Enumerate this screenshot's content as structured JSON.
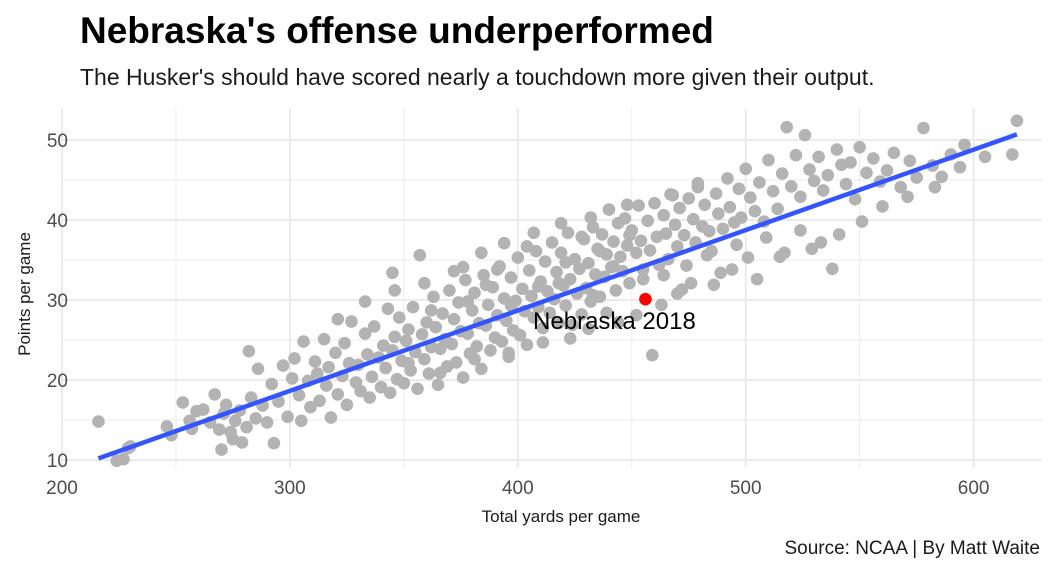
{
  "title": "Nebraska's offense underperformed",
  "subtitle": "The Husker's should have scored nearly a touchdown more given their output.",
  "caption": "Source: NCAA | By Matt Waite",
  "colors": {
    "points": "#b3b3b3",
    "highlight": "#ff0000",
    "trend": "#3355ff",
    "grid": "#ebebeb"
  },
  "chart_data": {
    "type": "scatter",
    "xlabel": "Total yards per game",
    "ylabel": "Points per game",
    "xlim": [
      200,
      630
    ],
    "ylim": [
      9,
      54
    ],
    "xticks": [
      200,
      300,
      400,
      500,
      600
    ],
    "yticks": [
      10,
      20,
      30,
      40,
      50
    ],
    "grid": true,
    "trend_line": {
      "x": [
        216,
        619
      ],
      "y": [
        10.2,
        50.7
      ]
    },
    "highlight": {
      "label": "Nebraska 2018",
      "x": 456,
      "y": 30.1
    },
    "points": [
      [
        216,
        14.8
      ],
      [
        224,
        9.9
      ],
      [
        227,
        10.1
      ],
      [
        229,
        11.5
      ],
      [
        230,
        11.7
      ],
      [
        246,
        14.2
      ],
      [
        248,
        13.1
      ],
      [
        253,
        17.2
      ],
      [
        256,
        14.9
      ],
      [
        257,
        13.9
      ],
      [
        259,
        16.1
      ],
      [
        262,
        16.3
      ],
      [
        265,
        14.7
      ],
      [
        267,
        18.2
      ],
      [
        269,
        13.8
      ],
      [
        270,
        11.3
      ],
      [
        271,
        15.8
      ],
      [
        272,
        16.9
      ],
      [
        274,
        13.5
      ],
      [
        275,
        12.6
      ],
      [
        276,
        14.9
      ],
      [
        278,
        16.2
      ],
      [
        279,
        12.2
      ],
      [
        281,
        14.1
      ],
      [
        282,
        23.6
      ],
      [
        283,
        17.8
      ],
      [
        285,
        15.2
      ],
      [
        286,
        21.4
      ],
      [
        288,
        16.8
      ],
      [
        290,
        14.7
      ],
      [
        292,
        19.5
      ],
      [
        293,
        12.1
      ],
      [
        295,
        17.3
      ],
      [
        297,
        21.8
      ],
      [
        299,
        15.4
      ],
      [
        301,
        20.2
      ],
      [
        302,
        22.7
      ],
      [
        304,
        18.1
      ],
      [
        305,
        14.9
      ],
      [
        306,
        24.8
      ],
      [
        308,
        19.9
      ],
      [
        309,
        16.6
      ],
      [
        311,
        22.3
      ],
      [
        312,
        20.8
      ],
      [
        313,
        17.4
      ],
      [
        315,
        25.1
      ],
      [
        316,
        19.3
      ],
      [
        317,
        21.6
      ],
      [
        318,
        15.3
      ],
      [
        320,
        23.4
      ],
      [
        321,
        18.2
      ],
      [
        323,
        20.5
      ],
      [
        324,
        24.6
      ],
      [
        325,
        16.9
      ],
      [
        326,
        22.1
      ],
      [
        327,
        27.3
      ],
      [
        329,
        19.7
      ],
      [
        330,
        21.9
      ],
      [
        331,
        18.6
      ],
      [
        333,
        25.8
      ],
      [
        334,
        23.2
      ],
      [
        335,
        17.8
      ],
      [
        336,
        20.4
      ],
      [
        337,
        26.7
      ],
      [
        339,
        22.8
      ],
      [
        340,
        19.1
      ],
      [
        341,
        24.3
      ],
      [
        342,
        21.5
      ],
      [
        343,
        28.9
      ],
      [
        344,
        18.4
      ],
      [
        345,
        23.7
      ],
      [
        346,
        25.4
      ],
      [
        347,
        20.1
      ],
      [
        348,
        27.8
      ],
      [
        349,
        22.4
      ],
      [
        350,
        19.6
      ],
      [
        351,
        24.9
      ],
      [
        352,
        26.3
      ],
      [
        353,
        21.2
      ],
      [
        354,
        29.1
      ],
      [
        355,
        23.5
      ],
      [
        356,
        18.9
      ],
      [
        357,
        35.6
      ],
      [
        358,
        25.7
      ],
      [
        359,
        22.6
      ],
      [
        360,
        27.2
      ],
      [
        361,
        20.8
      ],
      [
        362,
        24.1
      ],
      [
        363,
        30.4
      ],
      [
        364,
        26.6
      ],
      [
        365,
        19.4
      ],
      [
        366,
        23.9
      ],
      [
        367,
        28.3
      ],
      [
        368,
        25.1
      ],
      [
        369,
        21.7
      ],
      [
        370,
        31.2
      ],
      [
        371,
        24.5
      ],
      [
        372,
        27.6
      ],
      [
        373,
        22.2
      ],
      [
        374,
        29.7
      ],
      [
        375,
        26.1
      ],
      [
        376,
        20.3
      ],
      [
        377,
        32.5
      ],
      [
        378,
        25.8
      ],
      [
        379,
        23.3
      ],
      [
        380,
        28.7
      ],
      [
        381,
        30.9
      ],
      [
        382,
        24.2
      ],
      [
        383,
        27.1
      ],
      [
        384,
        21.4
      ],
      [
        385,
        33.1
      ],
      [
        386,
        26.8
      ],
      [
        387,
        29.4
      ],
      [
        388,
        23.7
      ],
      [
        389,
        31.6
      ],
      [
        390,
        25.3
      ],
      [
        391,
        28.1
      ],
      [
        392,
        34.2
      ],
      [
        393,
        24.8
      ],
      [
        394,
        30.2
      ],
      [
        395,
        27.4
      ],
      [
        396,
        22.9
      ],
      [
        397,
        32.8
      ],
      [
        398,
        26.2
      ],
      [
        399,
        29.9
      ],
      [
        400,
        35.3
      ],
      [
        401,
        25.6
      ],
      [
        402,
        31.4
      ],
      [
        403,
        28.6
      ],
      [
        404,
        24.4
      ],
      [
        405,
        33.7
      ],
      [
        406,
        30.5
      ],
      [
        407,
        27.8
      ],
      [
        408,
        36.1
      ],
      [
        409,
        29.1
      ],
      [
        410,
        32.3
      ],
      [
        411,
        26.5
      ],
      [
        412,
        34.8
      ],
      [
        413,
        31.1
      ],
      [
        414,
        28.4
      ],
      [
        415,
        37.2
      ],
      [
        416,
        30.1
      ],
      [
        417,
        33.5
      ],
      [
        418,
        27.1
      ],
      [
        419,
        35.9
      ],
      [
        420,
        31.8
      ],
      [
        421,
        29.3
      ],
      [
        422,
        38.4
      ],
      [
        423,
        32.6
      ],
      [
        424,
        26.9
      ],
      [
        425,
        35.1
      ],
      [
        426,
        30.8
      ],
      [
        427,
        33.9
      ],
      [
        428,
        28.2
      ],
      [
        429,
        37.6
      ],
      [
        430,
        31.5
      ],
      [
        431,
        34.6
      ],
      [
        432,
        29.8
      ],
      [
        433,
        39.1
      ],
      [
        434,
        33.2
      ],
      [
        435,
        36.4
      ],
      [
        436,
        30.4
      ],
      [
        437,
        38.2
      ],
      [
        438,
        32.9
      ],
      [
        439,
        35.7
      ],
      [
        440,
        41.3
      ],
      [
        441,
        34.1
      ],
      [
        442,
        37.3
      ],
      [
        443,
        31.2
      ],
      [
        444,
        39.6
      ],
      [
        445,
        35.4
      ],
      [
        446,
        33.6
      ],
      [
        447,
        40.2
      ],
      [
        448,
        36.8
      ],
      [
        449,
        32.1
      ],
      [
        450,
        38.7
      ],
      [
        452,
        35.9
      ],
      [
        453,
        41.8
      ],
      [
        454,
        37.4
      ],
      [
        455,
        33.8
      ],
      [
        457,
        39.9
      ],
      [
        458,
        36.2
      ],
      [
        459,
        23.1
      ],
      [
        460,
        42.1
      ],
      [
        461,
        37.9
      ],
      [
        462,
        34.4
      ],
      [
        464,
        40.6
      ],
      [
        465,
        38.3
      ],
      [
        466,
        35.1
      ],
      [
        467,
        43.2
      ],
      [
        469,
        39.4
      ],
      [
        470,
        36.7
      ],
      [
        471,
        41.5
      ],
      [
        473,
        38.1
      ],
      [
        474,
        34.3
      ],
      [
        475,
        42.7
      ],
      [
        477,
        40.1
      ],
      [
        478,
        37.2
      ],
      [
        479,
        44.1
      ],
      [
        481,
        39.2
      ],
      [
        482,
        41.9
      ],
      [
        484,
        38.6
      ],
      [
        485,
        36.1
      ],
      [
        487,
        43.3
      ],
      [
        488,
        40.8
      ],
      [
        490,
        38.9
      ],
      [
        492,
        45.2
      ],
      [
        493,
        41.6
      ],
      [
        495,
        39.7
      ],
      [
        497,
        43.9
      ],
      [
        498,
        40.3
      ],
      [
        500,
        46.4
      ],
      [
        502,
        42.8
      ],
      [
        504,
        41.1
      ],
      [
        506,
        44.7
      ],
      [
        508,
        39.8
      ],
      [
        510,
        47.5
      ],
      [
        512,
        43.6
      ],
      [
        514,
        41.4
      ],
      [
        516,
        45.8
      ],
      [
        518,
        51.6
      ],
      [
        520,
        44.2
      ],
      [
        522,
        48.1
      ],
      [
        524,
        42.9
      ],
      [
        526,
        50.6
      ],
      [
        528,
        46.3
      ],
      [
        530,
        44.9
      ],
      [
        532,
        47.9
      ],
      [
        534,
        43.7
      ],
      [
        536,
        45.6
      ],
      [
        538,
        33.9
      ],
      [
        540,
        48.8
      ],
      [
        542,
        46.9
      ],
      [
        544,
        44.5
      ],
      [
        546,
        47.2
      ],
      [
        548,
        42.6
      ],
      [
        550,
        49.1
      ],
      [
        553,
        45.9
      ],
      [
        556,
        47.7
      ],
      [
        559,
        44.8
      ],
      [
        562,
        46.2
      ],
      [
        565,
        48.4
      ],
      [
        568,
        44.1
      ],
      [
        572,
        47.4
      ],
      [
        575,
        45.3
      ],
      [
        578,
        51.5
      ],
      [
        582,
        46.8
      ],
      [
        586,
        45.4
      ],
      [
        590,
        48.2
      ],
      [
        596,
        49.4
      ],
      [
        605,
        47.9
      ],
      [
        617,
        48.2
      ],
      [
        619,
        52.4
      ],
      [
        345,
        33.4
      ],
      [
        362,
        28.7
      ],
      [
        376,
        34.1
      ],
      [
        391,
        33.8
      ],
      [
        404,
        36.7
      ],
      [
        418,
        32.1
      ],
      [
        428,
        37.9
      ],
      [
        436,
        36.1
      ],
      [
        442,
        34.2
      ],
      [
        449,
        38.1
      ],
      [
        378,
        29.8
      ],
      [
        386,
        31.9
      ],
      [
        397,
        29.3
      ],
      [
        409,
        31.7
      ],
      [
        421,
        34.7
      ],
      [
        433,
        30.6
      ],
      [
        439,
        28.4
      ],
      [
        455,
        32.6
      ],
      [
        464,
        33.1
      ],
      [
        470,
        30.8
      ],
      [
        476,
        32.1
      ],
      [
        483,
        35.6
      ],
      [
        489,
        33.4
      ],
      [
        496,
        36.9
      ],
      [
        501,
        35.3
      ],
      [
        509,
        37.8
      ],
      [
        515,
        35.4
      ],
      [
        524,
        38.7
      ],
      [
        533,
        37.2
      ],
      [
        352,
        22.1
      ],
      [
        366,
        20.9
      ],
      [
        381,
        22.6
      ],
      [
        396,
        23.4
      ],
      [
        411,
        24.7
      ],
      [
        423,
        25.2
      ],
      [
        431,
        26.4
      ],
      [
        444,
        27.2
      ],
      [
        452,
        28.1
      ],
      [
        463,
        29.4
      ],
      [
        472,
        31.3
      ],
      [
        486,
        31.9
      ],
      [
        494,
        33.8
      ],
      [
        505,
        32.6
      ],
      [
        517,
        35.9
      ],
      [
        529,
        36.4
      ],
      [
        541,
        38.2
      ],
      [
        551,
        39.8
      ],
      [
        560,
        41.7
      ],
      [
        571,
        42.9
      ],
      [
        583,
        44.1
      ],
      [
        594,
        46.6
      ],
      [
        321,
        27.6
      ],
      [
        333,
        29.8
      ],
      [
        346,
        31.2
      ],
      [
        359,
        32.1
      ],
      [
        372,
        33.6
      ],
      [
        384,
        35.9
      ],
      [
        394,
        37.1
      ],
      [
        407,
        38.4
      ],
      [
        419,
        39.6
      ],
      [
        432,
        40.3
      ],
      [
        448,
        41.9
      ],
      [
        468,
        43.1
      ],
      [
        479,
        44.6
      ]
    ]
  }
}
